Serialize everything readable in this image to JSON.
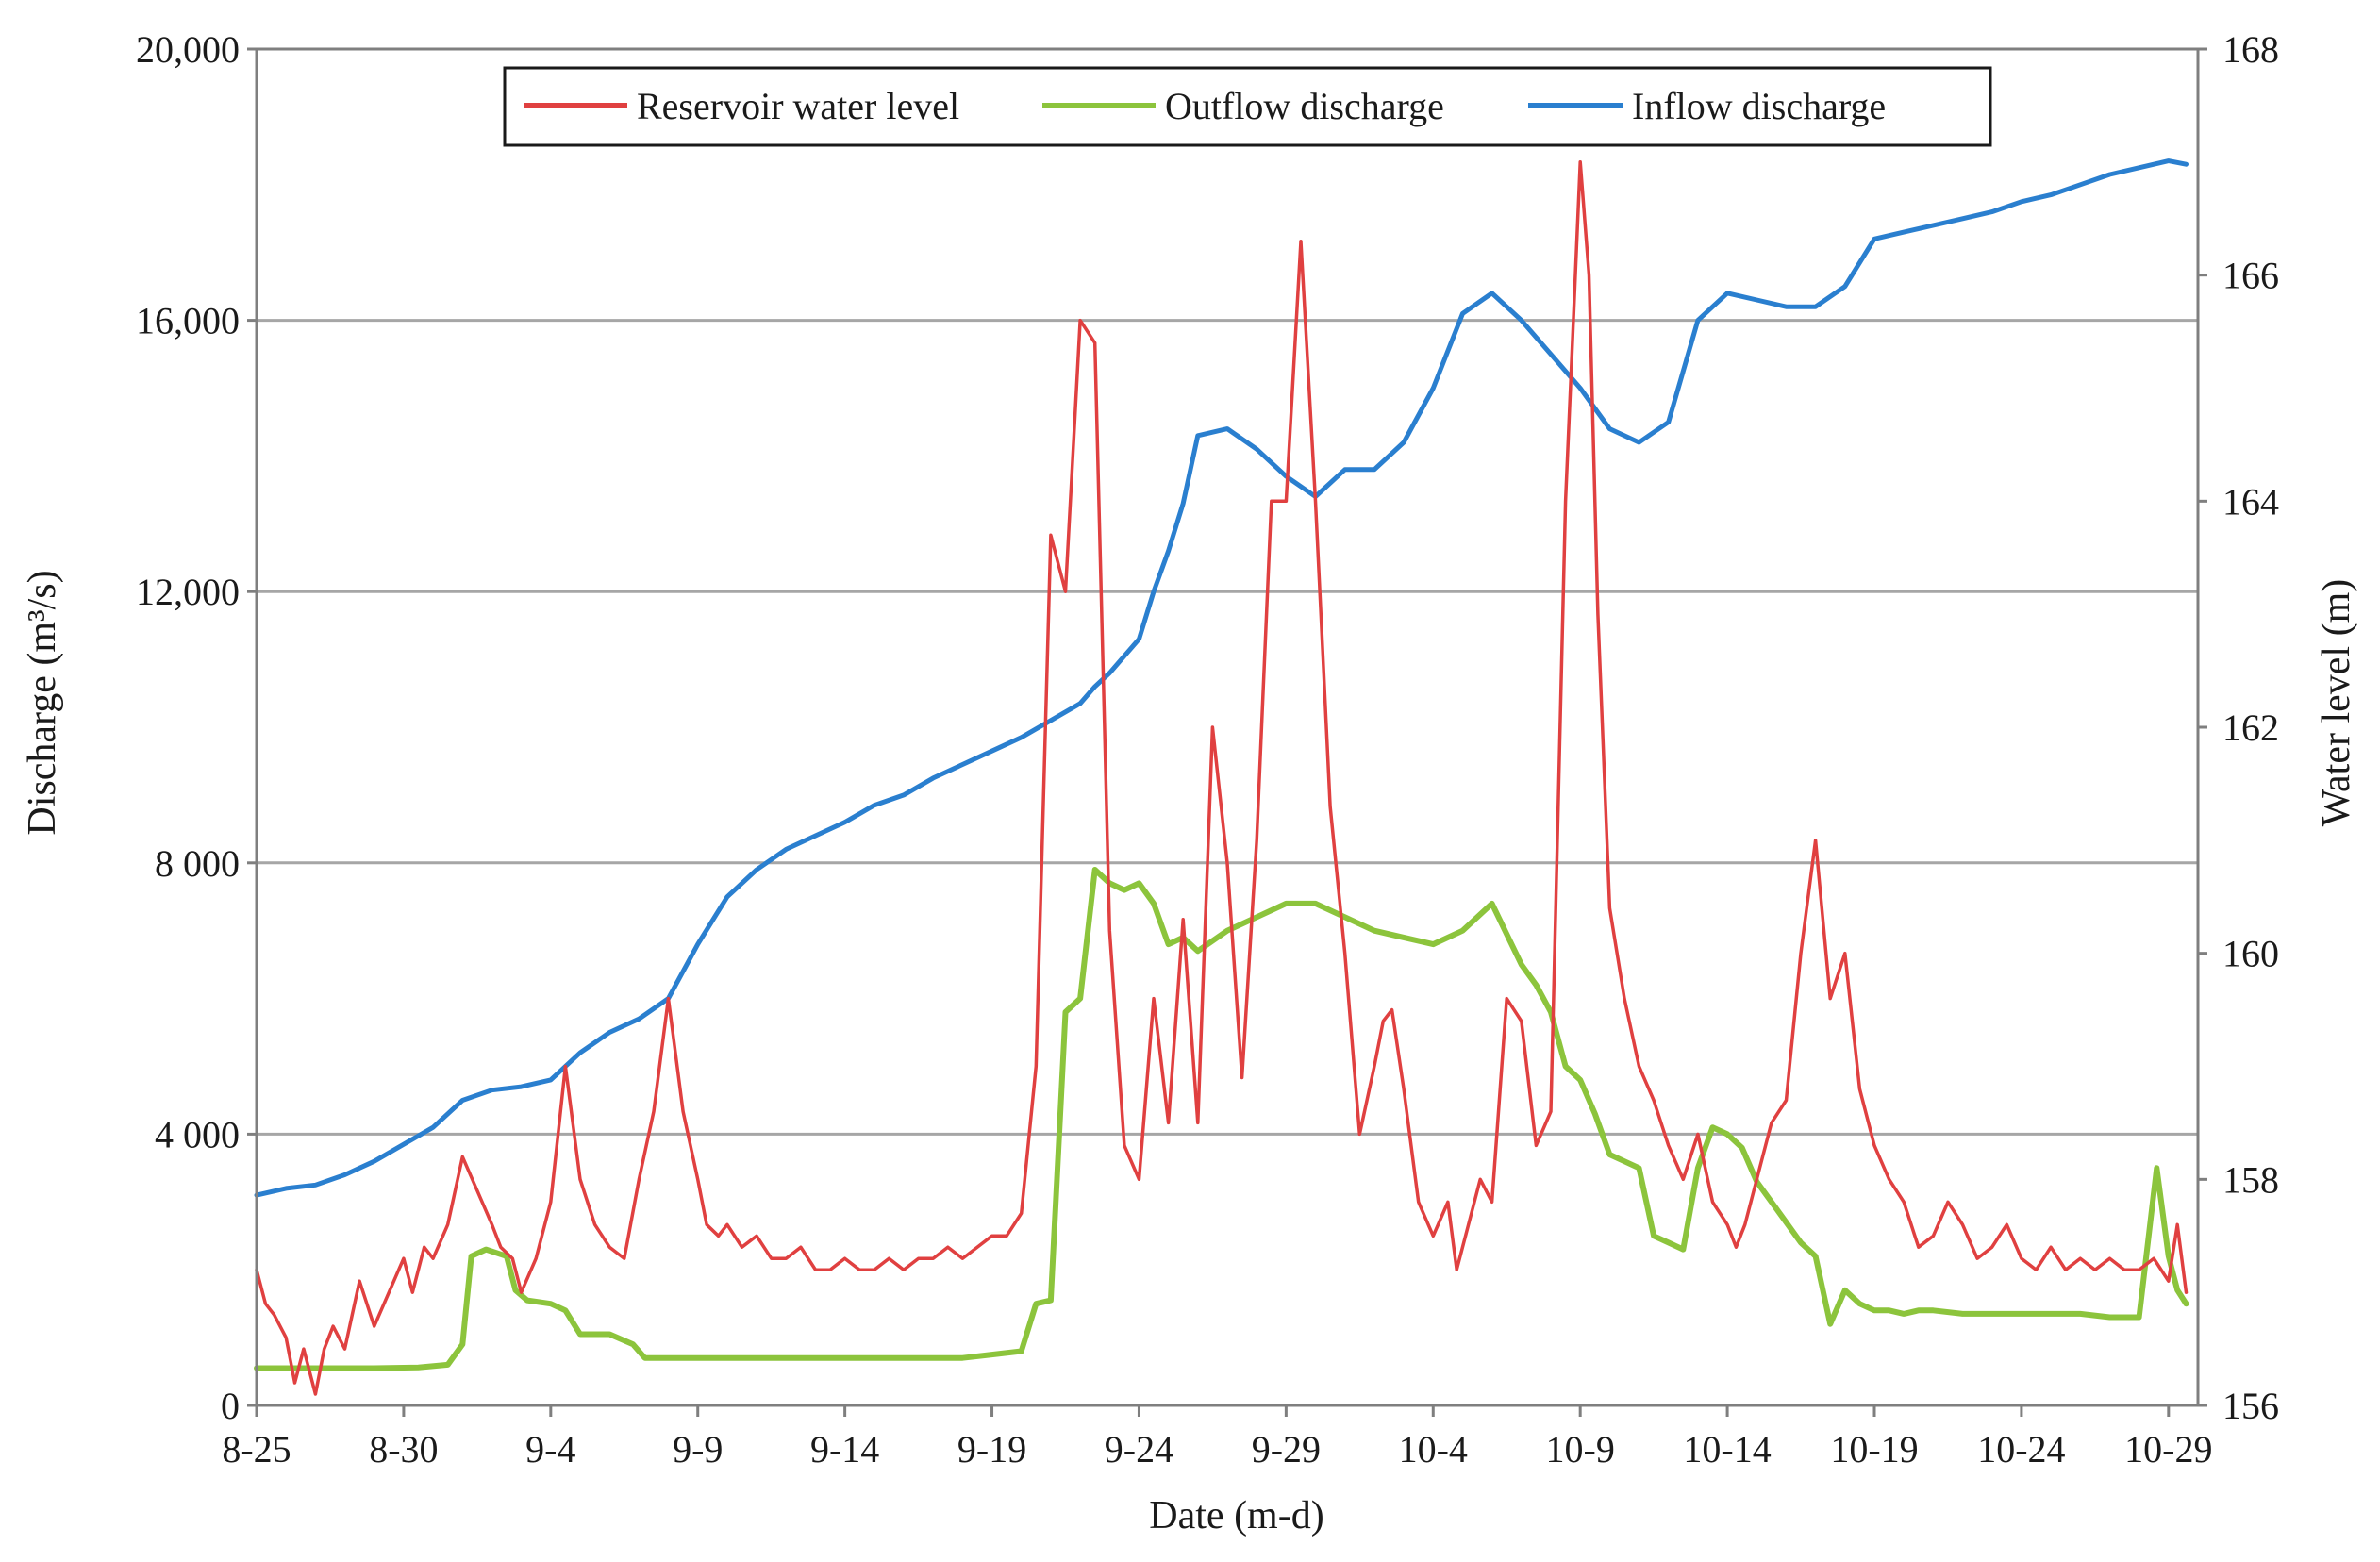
{
  "chart_data": {
    "type": "line",
    "xlabel": "Date (m-d)",
    "ylabel": "Discharge (m³/s)",
    "ylabel_right": "Water level (m)",
    "x_ticks": [
      "8-25",
      "8-30",
      "9-4",
      "9-9",
      "9-14",
      "9-19",
      "9-24",
      "9-29",
      "10-4",
      "10-9",
      "10-14",
      "10-19",
      "10-24",
      "10-29"
    ],
    "xlim_days": [
      0,
      66
    ],
    "x_unit": "days after 8-25",
    "ylim": [
      0,
      20000
    ],
    "ylim_right": [
      156,
      168
    ],
    "y_ticks": [
      "0",
      "4 000",
      "8 000",
      "12,000",
      "16,000",
      "20,000"
    ],
    "y_ticks_right": [
      "156",
      "158",
      "160",
      "162",
      "164",
      "166",
      "168"
    ],
    "grid_y_values": [
      4000,
      8000,
      12000,
      16000
    ],
    "legend_position": "top-center",
    "colors": {
      "water_level": "#e04040",
      "outflow": "#8cc43c",
      "inflow": "#2a7fcf",
      "grid": "#a6a6a6",
      "axis": "#7f7f7f"
    },
    "series": [
      {
        "name": "Reservoir water level",
        "axis": "right",
        "color": "#e04040",
        "x": [
          0,
          0.3,
          0.6,
          1.0,
          1.3,
          1.6,
          2.0,
          2.3,
          2.6,
          3.0,
          3.5,
          4.0,
          4.5,
          5.0,
          5.3,
          5.7,
          6.0,
          6.5,
          7.0,
          7.5,
          8.0,
          8.3,
          8.7,
          9.0,
          9.5,
          10.0,
          10.5,
          11.0,
          11.5,
          12.0,
          12.5,
          13.0,
          13.5,
          14.0,
          14.5,
          15.0,
          15.3,
          15.7,
          16.0,
          16.5,
          17.0,
          17.5,
          18.0,
          18.5,
          19.0,
          19.5,
          20.0,
          20.5,
          21.0,
          21.5,
          22.0,
          22.5,
          23.0,
          23.5,
          24.0,
          24.5,
          25.0,
          25.5,
          26.0,
          26.5,
          27.0,
          27.5,
          28.0,
          28.5,
          29.0,
          29.5,
          30.0,
          30.5,
          31.0,
          31.5,
          32.0,
          32.5,
          33.0,
          33.5,
          34.0,
          34.5,
          35.0,
          35.5,
          36.0,
          36.5,
          37.0,
          37.5,
          38.0,
          38.3,
          38.6,
          39.0,
          39.5,
          40.0,
          40.5,
          40.8,
          41.2,
          41.6,
          42.0,
          42.5,
          43.0,
          43.5,
          44.0,
          44.5,
          45.0,
          45.3,
          45.6,
          46.0,
          46.5,
          47.0,
          47.5,
          48.0,
          48.5,
          49.0,
          49.5,
          50.0,
          50.3,
          50.6,
          51.0,
          51.5,
          52.0,
          52.5,
          53.0,
          53.5,
          54.0,
          54.5,
          55.0,
          55.5,
          56.0,
          56.5,
          57.0,
          57.5,
          58.0,
          58.5,
          59.0,
          59.5,
          60.0,
          60.5,
          61.0,
          61.5,
          62.0,
          62.5,
          63.0,
          63.5,
          64.0,
          64.5,
          65.0,
          65.3,
          65.6
        ],
        "values": [
          157.2,
          156.9,
          156.8,
          156.6,
          156.2,
          156.5,
          156.1,
          156.5,
          156.7,
          156.5,
          157.1,
          156.7,
          157.0,
          157.3,
          157.0,
          157.4,
          157.3,
          157.6,
          158.2,
          157.9,
          157.6,
          157.4,
          157.3,
          157.0,
          157.3,
          157.8,
          159.0,
          158.0,
          157.6,
          157.4,
          157.3,
          158.0,
          158.6,
          159.6,
          158.6,
          158.0,
          157.6,
          157.5,
          157.6,
          157.4,
          157.5,
          157.3,
          157.3,
          157.4,
          157.2,
          157.2,
          157.3,
          157.2,
          157.2,
          157.3,
          157.2,
          157.3,
          157.3,
          157.4,
          157.3,
          157.4,
          157.5,
          157.5,
          157.7,
          159.0,
          163.7,
          163.2,
          165.6,
          165.4,
          160.2,
          158.3,
          158.0,
          159.6,
          158.5,
          160.3,
          158.5,
          162.0,
          160.8,
          158.9,
          161.0,
          164.0,
          164.0,
          166.3,
          164.0,
          161.3,
          160.0,
          158.4,
          159.0,
          159.4,
          159.5,
          158.8,
          157.8,
          157.5,
          157.8,
          157.2,
          157.6,
          158.0,
          157.8,
          159.6,
          159.4,
          158.3,
          158.6,
          164.0,
          167.0,
          166.0,
          163.0,
          160.4,
          159.6,
          159.0,
          158.7,
          158.3,
          158.0,
          158.4,
          157.8,
          157.6,
          157.4,
          157.6,
          158.0,
          158.5,
          158.7,
          160.0,
          161.0,
          159.6,
          160.0,
          158.8,
          158.3,
          158.0,
          157.8,
          157.4,
          157.5,
          157.8,
          157.6,
          157.3,
          157.4,
          157.6,
          157.3,
          157.2,
          157.4,
          157.2,
          157.3,
          157.2,
          157.3,
          157.2,
          157.2,
          157.3,
          157.1,
          157.6,
          157.0
        ]
      },
      {
        "name": "Outflow discharge",
        "axis": "left",
        "color": "#8cc43c",
        "x": [
          0,
          2,
          4,
          5.5,
          6.5,
          7.0,
          7.3,
          7.8,
          8.5,
          8.8,
          9.2,
          10.0,
          10.5,
          11.0,
          12.0,
          12.8,
          13.2,
          14,
          16,
          18,
          20,
          22,
          24,
          25,
          26,
          26.5,
          27.0,
          27.5,
          28.0,
          28.5,
          29.0,
          29.5,
          30.0,
          30.5,
          31.0,
          31.5,
          32.0,
          33.0,
          34.0,
          35.0,
          36.0,
          37.0,
          38.0,
          39.0,
          40.0,
          41.0,
          42.0,
          43.0,
          43.5,
          44.0,
          44.5,
          45.0,
          45.5,
          46.0,
          46.5,
          47.0,
          47.5,
          48.0,
          48.5,
          49.0,
          49.5,
          50.0,
          50.5,
          51.0,
          51.5,
          52.0,
          52.5,
          53.0,
          53.5,
          54.0,
          54.5,
          55.0,
          55.5,
          56.0,
          56.5,
          57.0,
          58.0,
          60.0,
          62.0,
          63.0,
          64.0,
          64.6,
          65.0,
          65.3,
          65.6
        ],
        "values": [
          550,
          550,
          550,
          560,
          600,
          900,
          2200,
          2300,
          2200,
          1700,
          1550,
          1500,
          1400,
          1050,
          1050,
          900,
          700,
          700,
          700,
          700,
          700,
          700,
          700,
          750,
          800,
          1500,
          1550,
          5800,
          6000,
          7900,
          7700,
          7600,
          7700,
          7400,
          6800,
          6900,
          6700,
          7000,
          7200,
          7400,
          7400,
          7200,
          7000,
          6900,
          6800,
          7000,
          7400,
          6500,
          6200,
          5800,
          5000,
          4800,
          4300,
          3700,
          3600,
          3500,
          2500,
          2400,
          2300,
          3500,
          4100,
          4000,
          3800,
          3300,
          3000,
          2700,
          2400,
          2200,
          1200,
          1700,
          1500,
          1400,
          1400,
          1350,
          1400,
          1400,
          1350,
          1350,
          1350,
          1300,
          1300,
          3500,
          2200,
          1700,
          1500
        ]
      },
      {
        "name": "Inflow discharge",
        "axis": "left",
        "color": "#2a7fcf",
        "x": [
          0,
          1,
          2,
          3,
          4,
          5,
          6,
          7,
          8,
          9,
          10,
          11,
          12,
          13,
          14,
          15,
          16,
          17,
          18,
          19,
          20,
          21,
          22,
          23,
          24,
          25,
          26,
          27,
          28,
          28.5,
          29,
          30,
          30.5,
          31,
          31.5,
          32,
          33,
          34,
          35,
          36,
          37,
          38,
          39,
          40,
          41,
          42,
          43,
          44,
          45,
          46,
          47,
          48,
          49,
          50,
          51,
          52,
          53,
          54,
          55,
          56,
          57,
          58,
          59,
          60,
          61,
          62,
          63,
          64,
          65,
          65.6
        ],
        "values": [
          3100,
          3200,
          3250,
          3400,
          3600,
          3850,
          4100,
          4500,
          4650,
          4700,
          4800,
          5200,
          5500,
          5700,
          6000,
          6800,
          7500,
          7900,
          8200,
          8400,
          8600,
          8850,
          9000,
          9250,
          9450,
          9650,
          9850,
          10100,
          10350,
          10600,
          10800,
          11300,
          12000,
          12600,
          13300,
          14300,
          14400,
          14100,
          13700,
          13400,
          13800,
          13800,
          14200,
          15000,
          16100,
          16400,
          16000,
          15500,
          15000,
          14400,
          14200,
          14500,
          16000,
          16400,
          16300,
          16200,
          16200,
          16500,
          17200,
          17300,
          17400,
          17500,
          17600,
          17750,
          17850,
          18000,
          18150,
          18250,
          18350,
          18300
        ]
      }
    ]
  }
}
